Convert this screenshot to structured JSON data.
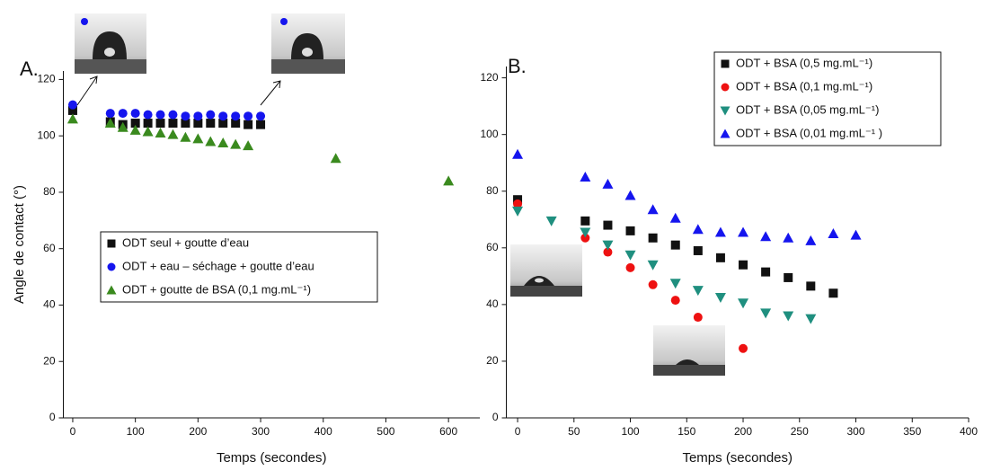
{
  "chart_data": [
    {
      "type": "scatter",
      "label": "A.",
      "xlabel": "Temps (secondes)",
      "ylabel": "Angle de contact (°)",
      "xlim": [
        -15,
        650
      ],
      "ylim": [
        0,
        123
      ],
      "xticks": [
        0,
        100,
        200,
        300,
        400,
        500,
        600
      ],
      "yticks": [
        0,
        20,
        40,
        60,
        80,
        100,
        120
      ],
      "legend": "center-left",
      "series": [
        {
          "name": "ODT seul + goutte d’eau",
          "color": "#111111",
          "marker": "square",
          "x": [
            0,
            60,
            80,
            100,
            120,
            140,
            160,
            180,
            200,
            220,
            240,
            260,
            280,
            300
          ],
          "values": [
            109,
            105,
            104,
            104.5,
            104.5,
            104.5,
            104.5,
            104.5,
            104.5,
            104.5,
            104.5,
            104.5,
            104,
            104
          ]
        },
        {
          "name": "ODT + eau – séchage + goutte d’eau",
          "color": "#1515ee",
          "marker": "circle",
          "x": [
            0,
            60,
            80,
            100,
            120,
            140,
            160,
            180,
            200,
            220,
            240,
            260,
            280,
            300
          ],
          "values": [
            111,
            108,
            108,
            108,
            107.5,
            107.5,
            107.5,
            107,
            107,
            107.5,
            107,
            107,
            107,
            107
          ]
        },
        {
          "name": "ODT + goutte de BSA (0,1 mg.mL⁻¹)",
          "color": "#3a8a1e",
          "marker": "triangle",
          "x": [
            0,
            60,
            80,
            100,
            120,
            140,
            160,
            180,
            200,
            220,
            240,
            260,
            280,
            420,
            600
          ],
          "values": [
            106,
            104.5,
            103,
            102,
            101.5,
            101,
            100.5,
            99.5,
            99,
            98,
            97.5,
            97,
            96.5,
            92,
            84
          ]
        }
      ]
    },
    {
      "type": "scatter",
      "label": "B.",
      "xlabel": "Temps (secondes)",
      "xlim": [
        -10,
        400
      ],
      "ylim": [
        0,
        124
      ],
      "xticks": [
        0,
        50,
        100,
        150,
        200,
        250,
        300,
        350,
        400
      ],
      "yticks": [
        0,
        20,
        40,
        60,
        80,
        100,
        120
      ],
      "legend": "upper right",
      "series": [
        {
          "name": "ODT + BSA (0,5 mg.mL⁻¹)",
          "color": "#111111",
          "marker": "square",
          "x": [
            0,
            60,
            80,
            100,
            120,
            140,
            160,
            180,
            200,
            220,
            240,
            260,
            280
          ],
          "values": [
            77,
            69.5,
            68,
            66,
            63.5,
            61,
            59,
            56.5,
            54,
            51.5,
            49.5,
            46.5,
            44
          ]
        },
        {
          "name": "ODT + BSA (0,1 mg.mL⁻¹)",
          "color": "#ee1111",
          "marker": "circle",
          "x": [
            0,
            60,
            80,
            100,
            120,
            140,
            160,
            200
          ],
          "values": [
            75.5,
            63.5,
            58.5,
            53,
            47,
            41.5,
            35.5,
            24.5
          ]
        },
        {
          "name": "ODT + BSA (0,05 mg.mL⁻¹)",
          "color": "#1f8f7f",
          "marker": "triangle-down",
          "x": [
            0,
            30,
            60,
            80,
            100,
            120,
            140,
            160,
            180,
            200,
            220,
            240,
            260
          ],
          "values": [
            73,
            69.5,
            65.5,
            61,
            57.5,
            54,
            47.5,
            45,
            42.5,
            40.5,
            37,
            36,
            35
          ]
        },
        {
          "name": "ODT + BSA (0,01 mg.mL⁻¹ )",
          "color": "#1515ee",
          "marker": "triangle",
          "x": [
            0,
            60,
            80,
            100,
            120,
            140,
            160,
            180,
            200,
            220,
            240,
            260,
            280,
            300
          ],
          "values": [
            93,
            85,
            82.5,
            78.5,
            73.5,
            70.5,
            66.5,
            65.5,
            65.5,
            64,
            63.5,
            62.5,
            65,
            64.5
          ]
        }
      ]
    }
  ]
}
